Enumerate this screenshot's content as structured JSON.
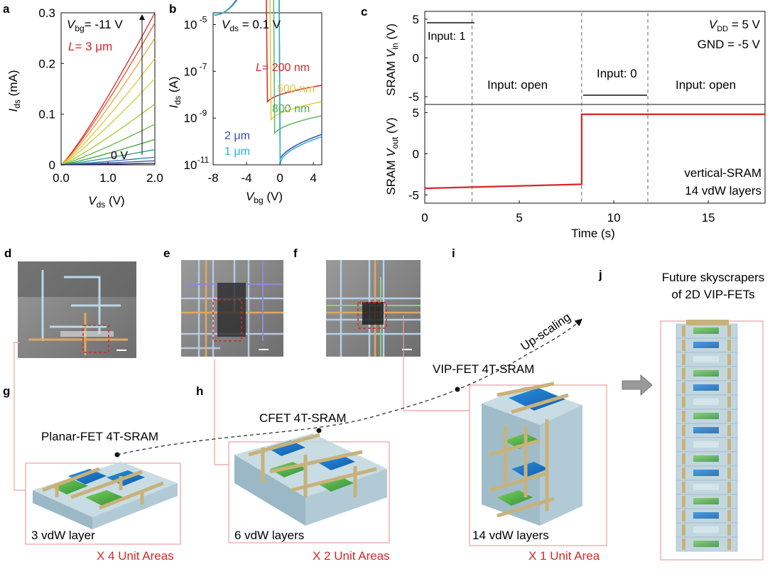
{
  "panel_letters": {
    "a": "a",
    "b": "b",
    "c": "c",
    "d": "d",
    "e": "e",
    "f": "f",
    "g": "g",
    "h": "h",
    "i": "i",
    "j": "j"
  },
  "chart_data": [
    {
      "id": "a",
      "type": "line",
      "xlabel_main": "V",
      "xlabel_sub": "ds",
      "xlabel_unit": " (V)",
      "ylabel_main": "I",
      "ylabel_sub": "ds",
      "ylabel_unit": " (mA)",
      "xlim": [
        0,
        2.0
      ],
      "ylim": [
        0,
        0.3
      ],
      "xticks": [
        "0.0",
        "1.0",
        "2.0"
      ],
      "xtick_values": [
        0,
        1,
        2
      ],
      "yticks": [
        "0",
        "0.1",
        "0.2",
        "0.3"
      ],
      "ytick_values": [
        0,
        0.1,
        0.2,
        0.3
      ],
      "annotations": {
        "vbg_main": "V",
        "vbg_sub": "bg",
        "vbg_val": "= -11 V",
        "L_label": "L",
        "L_val": "= 3 μm",
        "zero_label": "0 V"
      },
      "series_end_values": [
        0.3,
        0.28,
        0.25,
        0.21,
        0.17,
        0.12,
        0.08,
        0.05,
        0.03,
        0.015,
        0.008,
        0.003
      ],
      "series_colors": [
        "#d62728",
        "#e8502a",
        "#f2a33a",
        "#e8c53a",
        "#c8d23a",
        "#9acd32",
        "#66b83a",
        "#3ca33a",
        "#2a9a8a",
        "#2a7ab8",
        "#3a4aa8",
        "#222266"
      ]
    },
    {
      "id": "b",
      "type": "line",
      "xlabel_main": "V",
      "xlabel_sub": "bg",
      "xlabel_unit": " (V)",
      "ylabel_main": "I",
      "ylabel_sub": "ds",
      "ylabel_unit": " (A)",
      "xlim": [
        -8,
        5
      ],
      "ylog": true,
      "ylim_exp": [
        -11,
        -4.5
      ],
      "xticks": [
        "-8",
        "-4",
        "0",
        "4"
      ],
      "xtick_values": [
        -8,
        -4,
        0,
        4
      ],
      "yticks_base": "10",
      "ytick_exps": [
        "-5",
        "-7",
        "-9",
        "-11"
      ],
      "ytick_values": [
        -5,
        -7,
        -9,
        -11
      ],
      "annotations": {
        "vds_main": "V",
        "vds_sub": "ds",
        "vds_val": " = 0.1 V",
        "L_label": "L",
        "L_val": "= 200 nm",
        "l500": "500 nm",
        "l800": "800 nm",
        "l2": "2 μm",
        "l1": "1 μm"
      },
      "series": [
        {
          "name": "200 nm",
          "color": "#d62728",
          "min_x": -1.6,
          "min_y": -8.4,
          "right_y": -7.6
        },
        {
          "name": "500 nm",
          "color": "#e8c53a",
          "min_x": -1.2,
          "min_y": -9.2,
          "right_y": -8.3
        },
        {
          "name": "800 nm",
          "color": "#5cb85c",
          "min_x": -0.8,
          "min_y": -9.8,
          "right_y": -8.9
        },
        {
          "name": "2 μm",
          "color": "#3a4aa8",
          "min_x": -0.2,
          "min_y": -11,
          "right_y": -9.7
        },
        {
          "name": "1 μm",
          "color": "#2ab0d8",
          "min_x": 0,
          "min_y": -11,
          "right_y": -9.8
        }
      ]
    },
    {
      "id": "c",
      "type": "line",
      "xlabel": "Time (s)",
      "xlim": [
        0,
        18
      ],
      "xticks": [
        "0",
        "5",
        "10",
        "15"
      ],
      "xtick_values": [
        0,
        5,
        10,
        15
      ],
      "top": {
        "ylabel_prefix": "SRAM  ",
        "ylabel_main": "V",
        "ylabel_sub": "in",
        "ylabel_unit": " (V)",
        "ylim": [
          -6,
          6
        ],
        "yticks": [
          "5",
          "0",
          "-5"
        ],
        "ytick_values": [
          5,
          0,
          -5
        ],
        "input1": "Input: 1",
        "open1": "Input: open",
        "input0": "Input: 0",
        "open2": "Input: open",
        "vdd_main": "V",
        "vdd_sub": "DD",
        "vdd_val": " = 5 V",
        "gnd": "GND = -5 V"
      },
      "bottom": {
        "ylabel_prefix": "SRAM  ",
        "ylabel_main": "V",
        "ylabel_sub": "out",
        "ylabel_unit": " (V)",
        "ylim": [
          -6,
          6
        ],
        "yticks": [
          "5",
          "0",
          "-5"
        ],
        "ytick_values": [
          5,
          0,
          -5
        ],
        "note1": "vertical-SRAM",
        "note2": "14 vdW layers",
        "trace_x": [
          0,
          8.3,
          8.3,
          18
        ],
        "trace_y": [
          -4.2,
          -3.7,
          4.8,
          4.8
        ],
        "color": "#d62728"
      },
      "dashed_x": [
        2.5,
        8.3,
        11.8
      ]
    }
  ],
  "labels": {
    "planar": "Planar-FET 4T-SRAM",
    "cfet": "CFET 4T-SRAM",
    "vip": "VIP-FET 4T-SRAM",
    "upscaling": "Up-scaling",
    "future1": "Future skyscrapers",
    "future2": "of 2D VIP-FETs",
    "layers_g": "3 vdW layer",
    "layers_h": "6 vdW layers",
    "layers_i": "14 vdW layers",
    "area_g": "X 4 Unit Areas",
    "area_h": "X 2 Unit Areas",
    "area_i": "X 1 Unit Area"
  },
  "colors": {
    "accent_red": "#d62728",
    "box_red": "#e8a0a0",
    "navy": "#1a3a8a",
    "amber": "#e8c53a",
    "green": "#4caf50"
  }
}
